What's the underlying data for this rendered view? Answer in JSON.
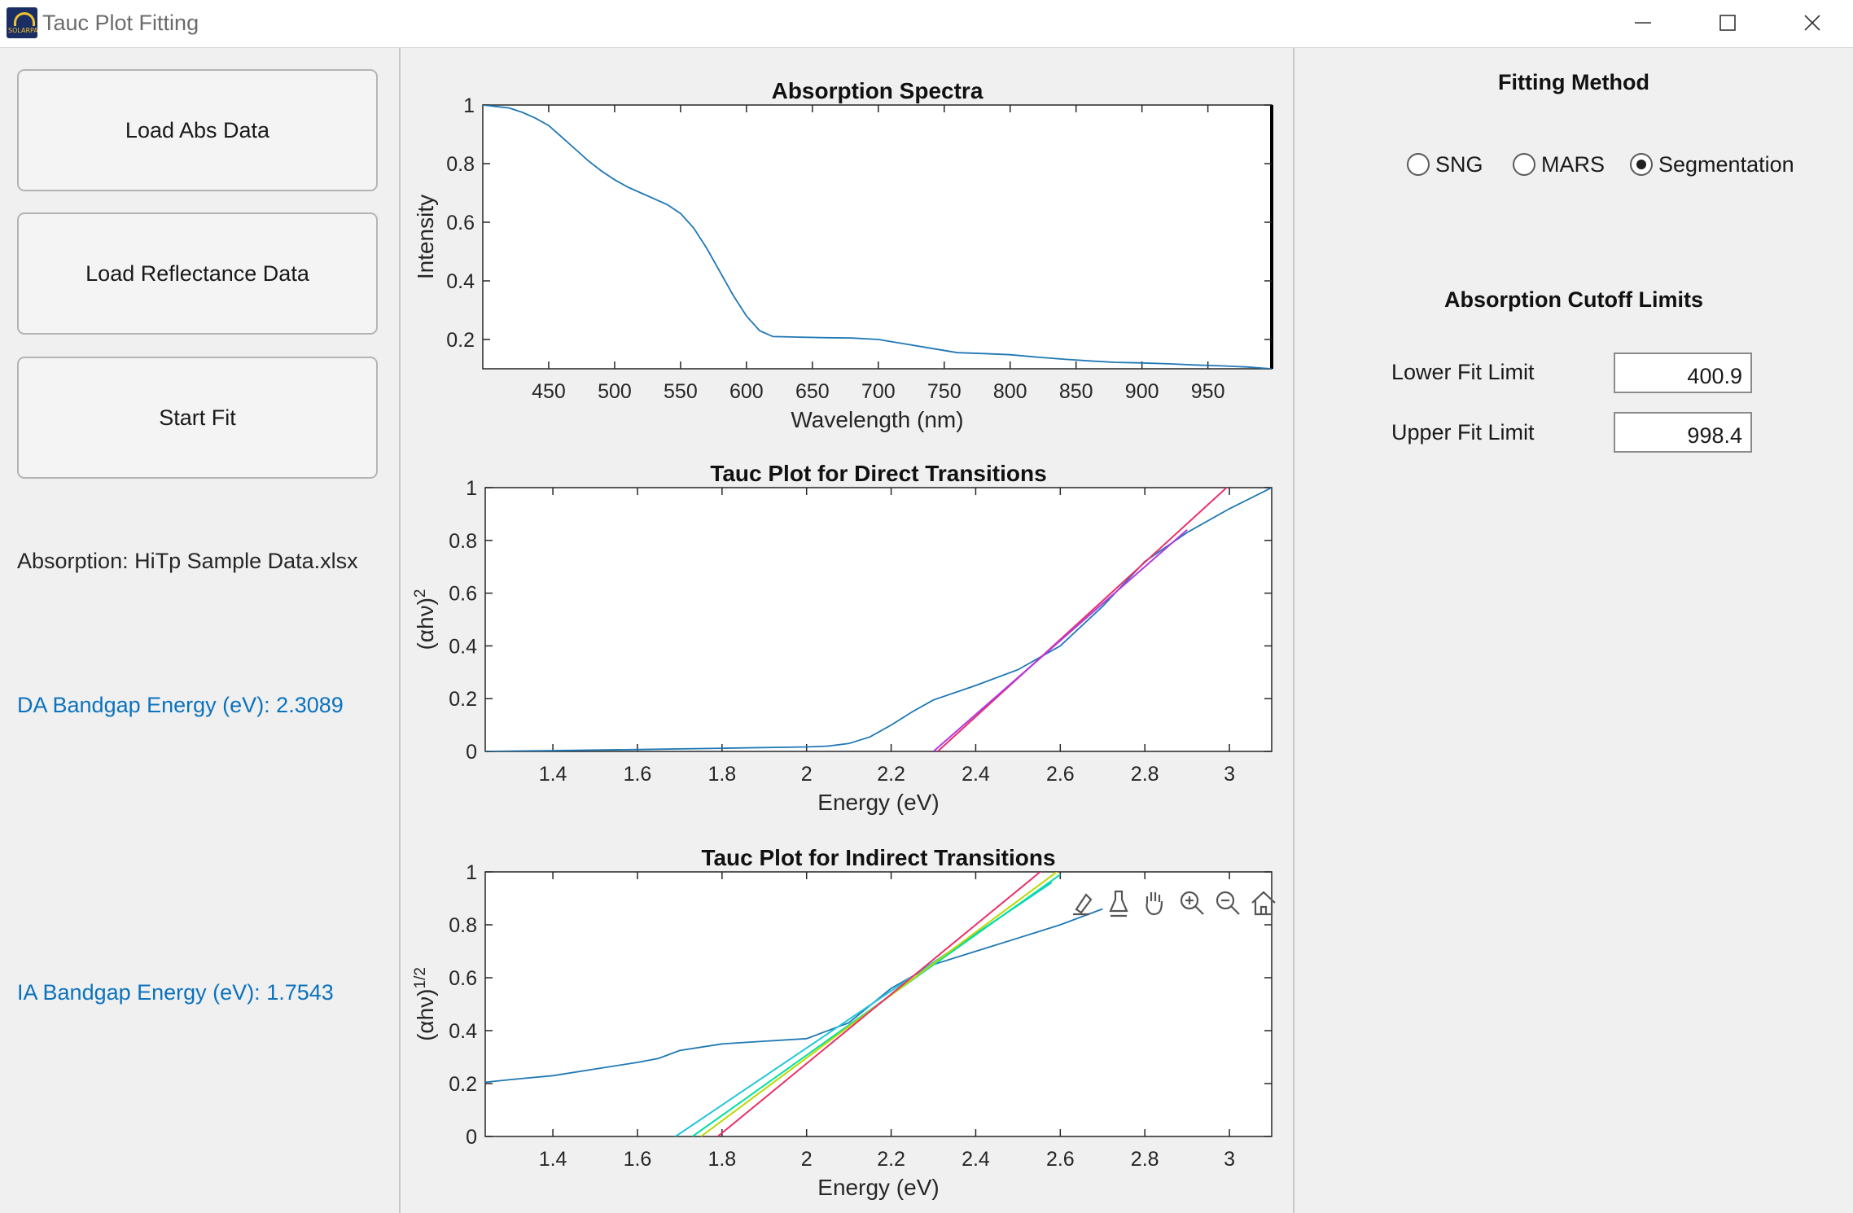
{
  "window": {
    "title": "Tauc Plot Fitting",
    "icon_text": "SOLARPAL"
  },
  "left_panel": {
    "buttons": {
      "load_abs": "Load Abs Data",
      "load_reflectance": "Load Reflectance Data",
      "start_fit": "Start Fit"
    },
    "absorption_file": "Absorption: HiTp Sample Data.xlsx",
    "da_bandgap": "DA Bandgap Energy (eV): 2.3089",
    "ia_bandgap": "IA Bandgap Energy (eV): 1.7543"
  },
  "right_panel": {
    "fitting_method_title": "Fitting Method",
    "methods": [
      {
        "label": "SNG",
        "selected": false
      },
      {
        "label": "MARS",
        "selected": false
      },
      {
        "label": "Segmentation",
        "selected": true
      }
    ],
    "cutoff_title": "Absorption Cutoff Limits",
    "lower_label": "Lower Fit Limit",
    "lower_value": "400.9",
    "upper_label": "Upper Fit Limit",
    "upper_value": "998.4"
  },
  "axes_toolbar_icons": [
    "brush-export-icon",
    "brush-icon",
    "pan-icon",
    "zoom-in-icon",
    "zoom-out-icon",
    "home-icon"
  ],
  "colors": {
    "data_line": "#1f78b4",
    "accent_text": "#0b72bd"
  },
  "chart_data": [
    {
      "type": "line",
      "title": "Absorption Spectra",
      "xlabel": "Wavelength (nm)",
      "ylabel": "Intensity",
      "xlim": [
        400,
        998.4
      ],
      "ylim": [
        0.1,
        1
      ],
      "xticks": [
        450,
        500,
        550,
        600,
        650,
        700,
        750,
        800,
        850,
        900,
        950
      ],
      "yticks": [
        0.2,
        0.4,
        0.6,
        0.8,
        1
      ],
      "series": [
        {
          "color": "#1f78b4",
          "x": [
            400,
            410,
            420,
            430,
            440,
            450,
            460,
            470,
            480,
            490,
            500,
            510,
            520,
            530,
            540,
            550,
            560,
            570,
            580,
            590,
            600,
            610,
            620,
            640,
            660,
            680,
            700,
            720,
            740,
            760,
            780,
            800,
            820,
            840,
            860,
            880,
            900,
            920,
            940,
            960,
            980,
            998
          ],
          "y": [
            1.0,
            0.995,
            0.99,
            0.975,
            0.955,
            0.93,
            0.89,
            0.85,
            0.81,
            0.775,
            0.745,
            0.72,
            0.7,
            0.68,
            0.66,
            0.63,
            0.58,
            0.51,
            0.43,
            0.35,
            0.28,
            0.23,
            0.21,
            0.208,
            0.206,
            0.205,
            0.2,
            0.185,
            0.17,
            0.155,
            0.152,
            0.148,
            0.14,
            0.133,
            0.127,
            0.122,
            0.12,
            0.117,
            0.113,
            0.11,
            0.106,
            0.1
          ]
        }
      ]
    },
    {
      "type": "line",
      "title": "Tauc Plot for Direct Transitions",
      "xlabel": "Energy (eV)",
      "ylabel": "(αhν)",
      "ylabel_superscript": "2",
      "xlim": [
        1.24,
        3.1
      ],
      "ylim": [
        0,
        1
      ],
      "xticks": [
        1.4,
        1.6,
        1.8,
        2,
        2.2,
        2.4,
        2.6,
        2.8,
        3
      ],
      "yticks": [
        0,
        0.2,
        0.4,
        0.6,
        0.8,
        1
      ],
      "series": [
        {
          "color": "#1f78b4",
          "x": [
            1.24,
            1.4,
            1.6,
            1.8,
            2.0,
            2.05,
            2.1,
            2.15,
            2.2,
            2.25,
            2.3,
            2.4,
            2.5,
            2.6,
            2.7,
            2.8,
            2.9,
            3.0,
            3.1
          ],
          "y": [
            0.0,
            0.003,
            0.007,
            0.012,
            0.017,
            0.02,
            0.03,
            0.055,
            0.1,
            0.15,
            0.195,
            0.25,
            0.31,
            0.4,
            0.55,
            0.72,
            0.83,
            0.92,
            1.0
          ]
        },
        {
          "color": "#e8306a",
          "x": [
            2.31,
            3.0
          ],
          "y": [
            0,
            1.01
          ]
        },
        {
          "color": "#b03ae0",
          "x": [
            2.3,
            2.9
          ],
          "y": [
            0,
            0.84
          ]
        }
      ]
    },
    {
      "type": "line",
      "title": "Tauc Plot for Indirect Transitions",
      "xlabel": "Energy (eV)",
      "ylabel": "(αhν)",
      "ylabel_superscript": "1/2",
      "xlim": [
        1.24,
        3.1
      ],
      "ylim": [
        0,
        1
      ],
      "xticks": [
        1.4,
        1.6,
        1.8,
        2,
        2.2,
        2.4,
        2.6,
        2.8,
        3
      ],
      "yticks": [
        0,
        0.2,
        0.4,
        0.6,
        0.8,
        1
      ],
      "series": [
        {
          "color": "#1f78b4",
          "x": [
            1.24,
            1.3,
            1.4,
            1.5,
            1.6,
            1.65,
            1.7,
            1.8,
            1.9,
            2.0,
            2.1,
            2.2,
            2.3,
            2.4,
            2.5,
            2.6,
            2.7
          ],
          "y": [
            0.205,
            0.215,
            0.23,
            0.255,
            0.28,
            0.295,
            0.325,
            0.35,
            0.36,
            0.37,
            0.43,
            0.56,
            0.65,
            0.7,
            0.75,
            0.8,
            0.86
          ]
        },
        {
          "color": "#22c5d8",
          "x": [
            1.69,
            2.58
          ],
          "y": [
            0,
            0.96
          ]
        },
        {
          "color": "#00e0a0",
          "x": [
            1.73,
            2.6
          ],
          "y": [
            0,
            0.99
          ]
        },
        {
          "color": "#bcd800",
          "x": [
            1.75,
            2.6
          ],
          "y": [
            0,
            1.01
          ]
        },
        {
          "color": "#e8306a",
          "x": [
            1.79,
            2.56
          ],
          "y": [
            0,
            1.01
          ]
        }
      ]
    }
  ]
}
